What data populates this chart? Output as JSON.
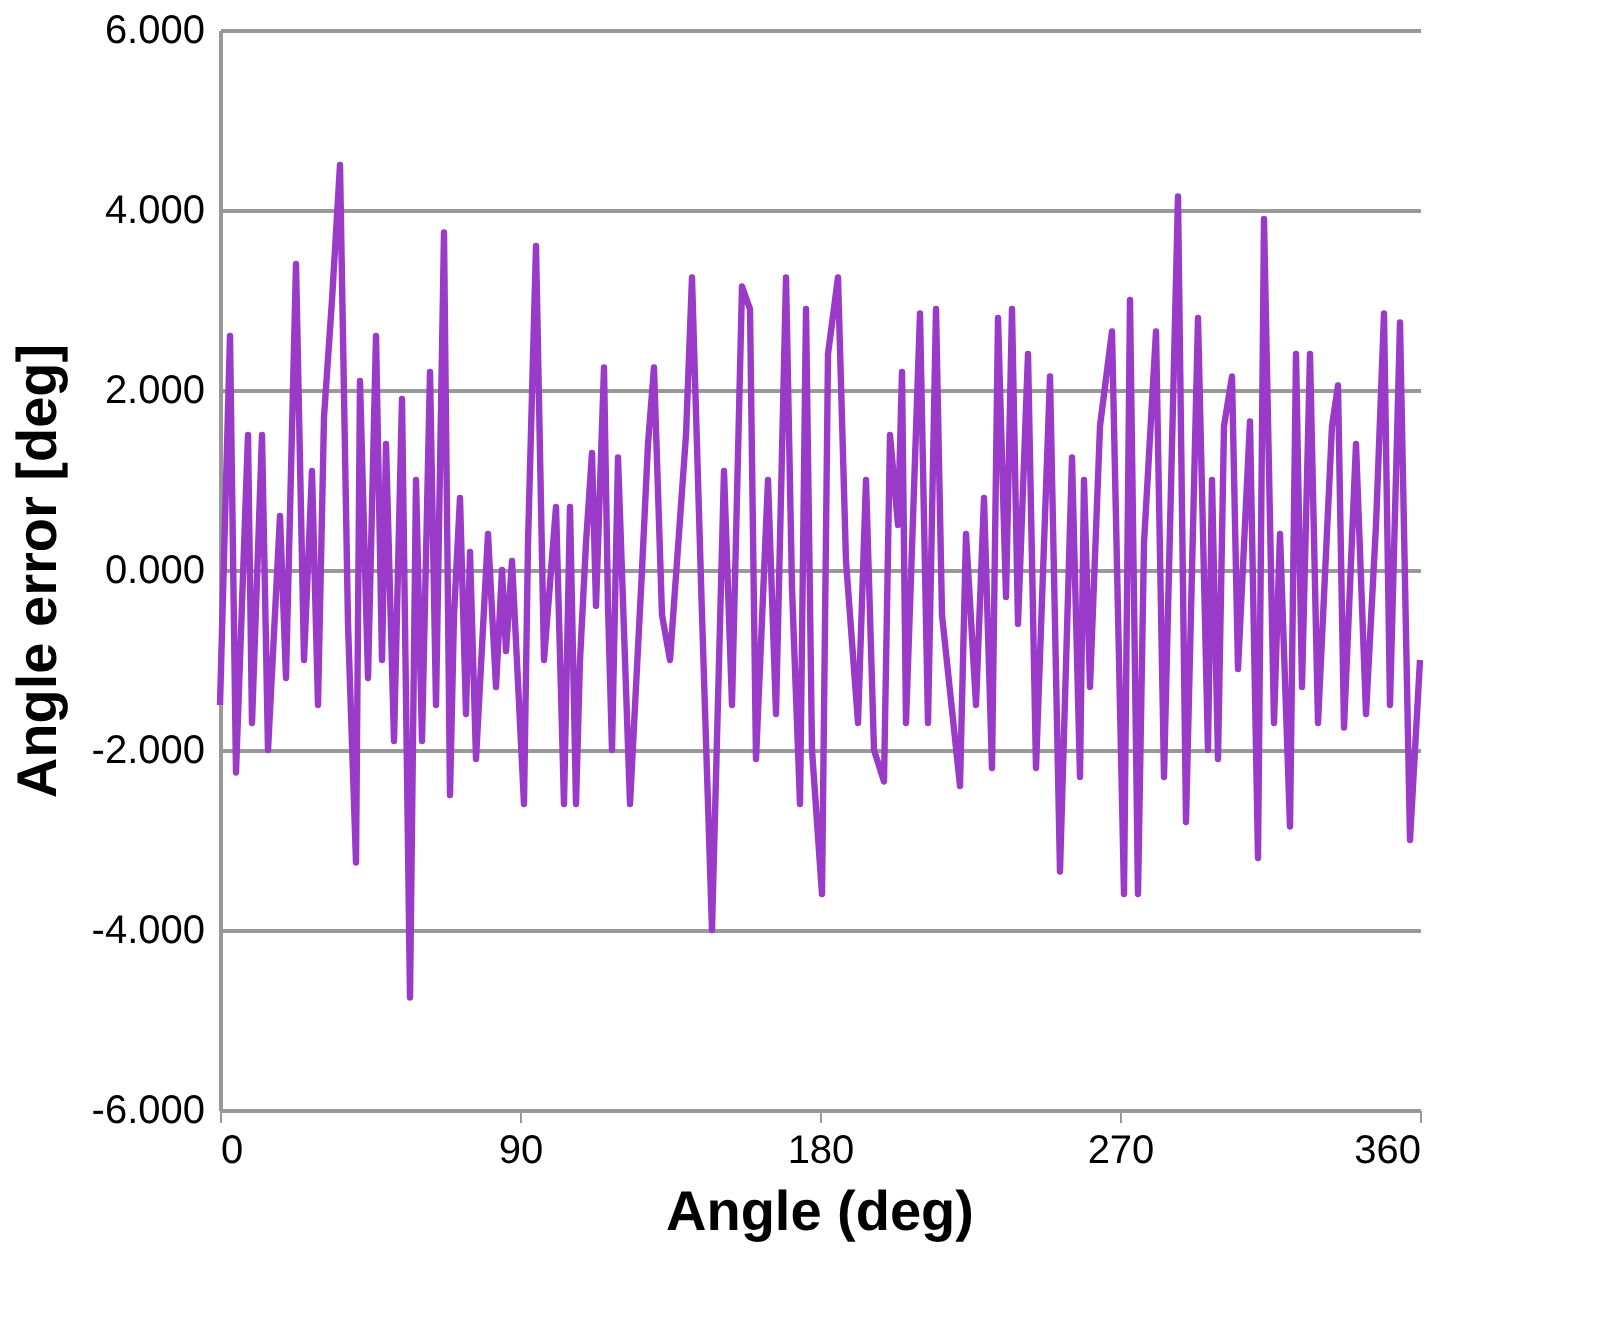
{
  "chart_data": {
    "type": "line",
    "xlabel": "Angle (deg)",
    "ylabel": "Angle error [deg]",
    "x": [
      0,
      3,
      4.8,
      8.4,
      9.6,
      12.6,
      14.4,
      18,
      19.8,
      22.8,
      25.2,
      27.6,
      29.4,
      31.2,
      33.6,
      36,
      38.4,
      40.8,
      42,
      44.4,
      46.8,
      48.6,
      49.8,
      52.2,
      54.6,
      57,
      58.8,
      60.6,
      63,
      64.8,
      67.2,
      69,
      70.2,
      72,
      73.8,
      75,
      76.8,
      80.4,
      82.8,
      84.6,
      85.8,
      87.6,
      91.2,
      92.4,
      94.8,
      97.2,
      100.8,
      103.2,
      105,
      106.8,
      108,
      109.8,
      111.6,
      112.8,
      115.2,
      116.4,
      117.6,
      119.4,
      123,
      126.6,
      128.4,
      130.2,
      132.6,
      135,
      139.8,
      141.6,
      144.6,
      147.6,
      151.2,
      153.6,
      156.6,
      159,
      160.8,
      164.4,
      166.8,
      169.8,
      171.6,
      174,
      175.8,
      177.6,
      180.6,
      182.4,
      185.4,
      187.8,
      191.4,
      193.8,
      196.2,
      199.2,
      201,
      203.4,
      204.6,
      205.8,
      210,
      212.4,
      214.8,
      216.6,
      222,
      223.8,
      226.8,
      229.2,
      231.6,
      233.4,
      235.8,
      237.6,
      239.4,
      242.4,
      244.8,
      249,
      252,
      255.6,
      258,
      259.2,
      261,
      264,
      267.6,
      271.2,
      273,
      275.4,
      277.2,
      280.8,
      283.2,
      287.4,
      289.8,
      293.4,
      296.4,
      297.6,
      299.4,
      301.2,
      303.6,
      305.4,
      309,
      311.4,
      313.2,
      316.2,
      318,
      321,
      322.8,
      324.6,
      327,
      329.4,
      333.6,
      335.4,
      337.2,
      340.8,
      343.8,
      346.8,
      349.2,
      351,
      354,
      357,
      360
    ],
    "series": [
      {
        "color": "#9a3ac8",
        "values": [
          -1.5,
          2.6,
          -2.25,
          1.5,
          -1.7,
          1.5,
          -2.0,
          0.6,
          -1.2,
          3.4,
          -1.0,
          1.1,
          -1.5,
          1.7,
          3.0,
          4.5,
          -0.6,
          -3.25,
          2.1,
          -1.2,
          2.6,
          -1.0,
          1.4,
          -1.9,
          1.9,
          -4.75,
          1.0,
          -1.9,
          2.2,
          -1.5,
          3.75,
          -2.5,
          -0.5,
          0.8,
          -1.6,
          0.2,
          -2.1,
          0.4,
          -1.3,
          0,
          -0.9,
          0.1,
          -2.6,
          0.3,
          3.6,
          -1.0,
          0.7,
          -2.6,
          0.7,
          -2.6,
          -1.0,
          0.3,
          1.3,
          -0.4,
          2.25,
          -0.4,
          -2.0,
          1.25,
          -2.6,
          0,
          1.4,
          2.25,
          -0.5,
          -1.0,
          1.5,
          3.25,
          -0.5,
          -4.0,
          1.1,
          -1.5,
          3.15,
          2.9,
          -2.1,
          1.0,
          -1.6,
          3.25,
          -0.2,
          -2.6,
          2.9,
          -2.0,
          -3.6,
          2.4,
          3.25,
          0.1,
          -1.7,
          1.0,
          -2.0,
          -2.35,
          1.5,
          0.5,
          2.2,
          -1.7,
          2.85,
          -1.7,
          2.9,
          -0.5,
          -2.4,
          0.4,
          -1.5,
          0.8,
          -2.2,
          2.8,
          -0.3,
          2.9,
          -0.6,
          2.4,
          -2.2,
          2.15,
          -3.35,
          1.25,
          -2.3,
          1.0,
          -1.3,
          1.6,
          2.65,
          -3.6,
          3.0,
          -3.6,
          0.3,
          2.65,
          -2.3,
          4.15,
          -2.8,
          2.8,
          -2.0,
          1.0,
          -2.1,
          1.6,
          2.15,
          -1.1,
          1.65,
          -3.2,
          3.9,
          -1.7,
          0.4,
          -2.85,
          2.4,
          -1.3,
          2.4,
          -1.7,
          1.6,
          2.05,
          -1.75,
          1.4,
          -1.6,
          0.5,
          2.85,
          -1.5,
          2.75,
          -3.0,
          -1.0
        ]
      }
    ],
    "xlim": [
      0,
      360
    ],
    "xticks": [
      0,
      90,
      180,
      270,
      360
    ],
    "ylim": [
      -6,
      6
    ],
    "yticks": [
      {
        "value": -6,
        "label": "-6.000"
      },
      {
        "value": -4,
        "label": "-4.000"
      },
      {
        "value": -2,
        "label": "-2.000"
      },
      {
        "value": 0,
        "label": "0.000"
      },
      {
        "value": 2,
        "label": "2.000"
      },
      {
        "value": 4,
        "label": "4.000"
      },
      {
        "value": 6,
        "label": "6.000"
      }
    ],
    "grid": "y",
    "marker": "none",
    "line_style": "solid"
  }
}
